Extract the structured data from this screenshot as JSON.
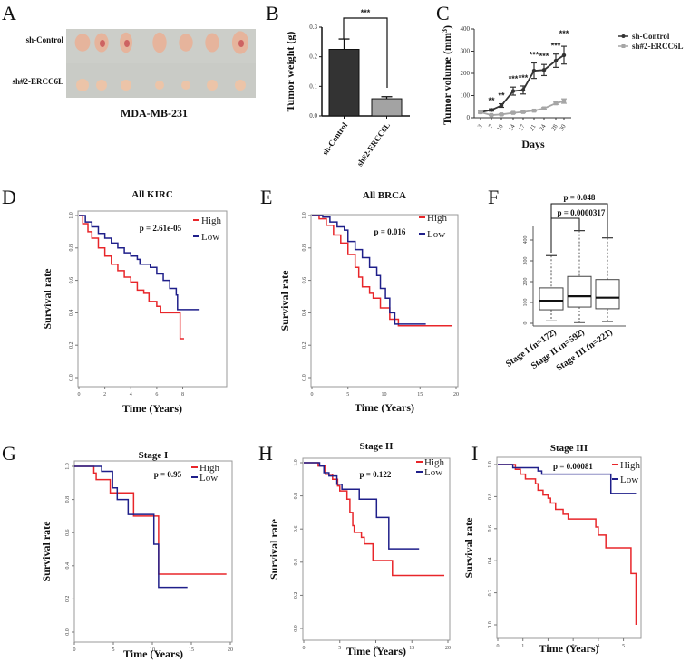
{
  "figure": {
    "panel_labels": [
      "A",
      "B",
      "C",
      "D",
      "E",
      "F",
      "G",
      "H",
      "I"
    ]
  },
  "chart_data": [
    {
      "panel": "A",
      "type": "image",
      "description": "Photograph of excised xenograft tumors",
      "row_labels": [
        "sh-Control",
        "sh#2-ERCC6L"
      ],
      "tumors_per_row": 7,
      "caption": "MDA-MB-231",
      "colors": {
        "background": "#c9cbc6",
        "tumor": "#e6b49c",
        "tumor_red": "#c2404a"
      }
    },
    {
      "panel": "B",
      "type": "bar",
      "title": "",
      "categories": [
        "sh-Control",
        "sh#2-ERCC6L"
      ],
      "values": [
        0.225,
        0.058
      ],
      "errors": [
        0.035,
        0.007
      ],
      "ylabel": "Tumor weight (g)",
      "xlabel": "",
      "ylim": [
        0,
        0.3
      ],
      "yticks": [
        "0.0",
        "0.1",
        "0.2",
        "0.3"
      ],
      "significance": "***",
      "colors": [
        "#333333",
        "#a3a3a3"
      ],
      "grid": false
    },
    {
      "panel": "C",
      "type": "line",
      "x": [
        3,
        7,
        10,
        14,
        17,
        21,
        24,
        28,
        30
      ],
      "xticks": [
        "3",
        "7",
        "10",
        "14",
        "17",
        "21",
        "24",
        "28",
        "30"
      ],
      "series": [
        {
          "name": "sh-Control",
          "values": [
            25,
            35,
            55,
            120,
            125,
            212,
            215,
            257,
            282
          ],
          "errors": [
            4,
            5,
            8,
            18,
            18,
            35,
            25,
            30,
            40
          ],
          "color": "#333333"
        },
        {
          "name": "sh#2-ERCC6L",
          "values": [
            25,
            12,
            15,
            22,
            26,
            32,
            42,
            65,
            75
          ],
          "errors": [
            3,
            2,
            3,
            3,
            3,
            3,
            4,
            5,
            10
          ],
          "color": "#a6a6a6"
        }
      ],
      "significance": [
        "",
        "**",
        "**",
        "***",
        "***",
        "***",
        "***",
        "***",
        "***"
      ],
      "xlabel": "Days",
      "ylabel": "Tumor volume (mm³)",
      "ylabel_base": "Tumor volume (mm",
      "ylabel_sup": "3",
      "ylabel_end": ")",
      "ylim": [
        0,
        400
      ],
      "yticks": [
        "0",
        "100",
        "200",
        "300",
        "400"
      ],
      "legend": "right",
      "grid": false
    },
    {
      "panel": "D",
      "type": "line",
      "subtype": "kaplan-meier",
      "title": "All KIRC",
      "pvalue": "p = 2.61e-05",
      "xlabel": "Time (Years)",
      "ylabel": "Survival rate",
      "xlim": [
        0,
        9.5
      ],
      "ylim": [
        0,
        1
      ],
      "xticks": [
        "0",
        "2",
        "4",
        "6",
        "8"
      ],
      "yticks": [
        "0.0",
        "0.2",
        "0.4",
        "0.6",
        "0.8",
        "1.0"
      ],
      "legend": "top-right",
      "series": [
        {
          "name": "High",
          "color": "#e8262a",
          "points": [
            [
              0,
              1.0
            ],
            [
              0.3,
              0.95
            ],
            [
              0.7,
              0.9
            ],
            [
              1.0,
              0.86
            ],
            [
              1.5,
              0.8
            ],
            [
              2.0,
              0.75
            ],
            [
              2.5,
              0.7
            ],
            [
              3.0,
              0.66
            ],
            [
              3.5,
              0.62
            ],
            [
              4.0,
              0.59
            ],
            [
              4.5,
              0.54
            ],
            [
              5.0,
              0.52
            ],
            [
              5.4,
              0.47
            ],
            [
              6.0,
              0.44
            ],
            [
              6.3,
              0.4
            ],
            [
              7.6,
              0.4
            ],
            [
              7.8,
              0.24
            ],
            [
              8.1,
              0.24
            ]
          ]
        },
        {
          "name": "Low",
          "color": "#1f1f8a",
          "points": [
            [
              0,
              1.0
            ],
            [
              0.5,
              0.96
            ],
            [
              1.0,
              0.93
            ],
            [
              1.5,
              0.89
            ],
            [
              2.0,
              0.86
            ],
            [
              2.5,
              0.83
            ],
            [
              3.0,
              0.8
            ],
            [
              3.5,
              0.77
            ],
            [
              4.0,
              0.75
            ],
            [
              4.5,
              0.73
            ],
            [
              4.7,
              0.7
            ],
            [
              5.5,
              0.68
            ],
            [
              6.0,
              0.64
            ],
            [
              6.5,
              0.6
            ],
            [
              7.0,
              0.55
            ],
            [
              7.5,
              0.51
            ],
            [
              7.6,
              0.42
            ],
            [
              9.3,
              0.42
            ]
          ]
        }
      ]
    },
    {
      "panel": "E",
      "type": "line",
      "subtype": "kaplan-meier",
      "title": "All BRCA",
      "pvalue": "p = 0.016",
      "xlabel": "Time (Years)",
      "ylabel": "Survival rate",
      "xlim": [
        0,
        20
      ],
      "ylim": [
        0,
        1
      ],
      "xticks": [
        "0",
        "5",
        "10",
        "15",
        "20"
      ],
      "yticks": [
        "0.0",
        "0.2",
        "0.4",
        "0.6",
        "0.8",
        "1.0"
      ],
      "legend": "top-right",
      "series": [
        {
          "name": "High",
          "color": "#e8262a",
          "points": [
            [
              0,
              1.0
            ],
            [
              1,
              0.98
            ],
            [
              2,
              0.94
            ],
            [
              3,
              0.88
            ],
            [
              4,
              0.83
            ],
            [
              5,
              0.76
            ],
            [
              6,
              0.68
            ],
            [
              6.5,
              0.62
            ],
            [
              7,
              0.56
            ],
            [
              8,
              0.52
            ],
            [
              8.5,
              0.49
            ],
            [
              9.5,
              0.43
            ],
            [
              10.8,
              0.36
            ],
            [
              12,
              0.32
            ],
            [
              19.5,
              0.32
            ]
          ]
        },
        {
          "name": "Low",
          "color": "#1f1f8a",
          "points": [
            [
              0,
              1.0
            ],
            [
              1.5,
              0.99
            ],
            [
              2.5,
              0.96
            ],
            [
              3.5,
              0.93
            ],
            [
              4.5,
              0.91
            ],
            [
              5,
              0.84
            ],
            [
              6,
              0.79
            ],
            [
              7,
              0.74
            ],
            [
              8,
              0.68
            ],
            [
              9,
              0.63
            ],
            [
              9.5,
              0.55
            ],
            [
              10.2,
              0.49
            ],
            [
              10.8,
              0.4
            ],
            [
              11.5,
              0.33
            ],
            [
              15.8,
              0.33
            ]
          ]
        }
      ]
    },
    {
      "panel": "F",
      "type": "box",
      "categories": [
        "Stage I (n=172)",
        "Stage II (n=592)",
        "Stage III (n=221)"
      ],
      "boxes": [
        {
          "min": 12,
          "q1": 65,
          "median": 108,
          "q3": 170,
          "max": 325
        },
        {
          "min": 3,
          "q1": 78,
          "median": 130,
          "q3": 225,
          "max": 445
        },
        {
          "min": 8,
          "q1": 70,
          "median": 123,
          "q3": 210,
          "max": 410
        }
      ],
      "ylim": [
        0,
        450
      ],
      "yticks": [
        "0",
        "100",
        "200",
        "300",
        "400"
      ],
      "comparisons": [
        {
          "groups": [
            0,
            2
          ],
          "label": "p = 0.048"
        },
        {
          "groups": [
            0,
            1
          ],
          "label": "p = 0.0000317"
        }
      ]
    },
    {
      "panel": "G",
      "type": "line",
      "subtype": "kaplan-meier",
      "title": "Stage I",
      "pvalue": "p = 0.95",
      "xlabel": "Time (Years)",
      "ylabel": "Survival rate",
      "xlim": [
        0,
        20
      ],
      "ylim": [
        0,
        1
      ],
      "xticks": [
        "0",
        "5",
        "10",
        "15",
        "20"
      ],
      "yticks": [
        "0.0",
        "0.2",
        "0.4",
        "0.6",
        "0.8",
        "1.0"
      ],
      "legend": "top-right",
      "series": [
        {
          "name": "High",
          "color": "#e8262a",
          "points": [
            [
              0,
              1.0
            ],
            [
              2.5,
              1.0
            ],
            [
              2.5,
              0.96
            ],
            [
              2.8,
              0.92
            ],
            [
              4.6,
              0.92
            ],
            [
              4.6,
              0.84
            ],
            [
              7.5,
              0.84
            ],
            [
              7.6,
              0.7
            ],
            [
              10.8,
              0.7
            ],
            [
              10.8,
              0.35
            ],
            [
              19.5,
              0.35
            ]
          ]
        },
        {
          "name": "Low",
          "color": "#1f1f8a",
          "points": [
            [
              0,
              1.0
            ],
            [
              3.5,
              1.0
            ],
            [
              3.5,
              0.97
            ],
            [
              4.9,
              0.97
            ],
            [
              4.9,
              0.87
            ],
            [
              5.4,
              0.87
            ],
            [
              5.5,
              0.8
            ],
            [
              6.8,
              0.8
            ],
            [
              6.9,
              0.71
            ],
            [
              10.2,
              0.71
            ],
            [
              10.2,
              0.53
            ],
            [
              10.8,
              0.53
            ],
            [
              10.8,
              0.27
            ],
            [
              14.5,
              0.27
            ]
          ]
        }
      ]
    },
    {
      "panel": "H",
      "type": "line",
      "subtype": "kaplan-meier",
      "title": "Stage II",
      "pvalue": "p = 0.122",
      "xlabel": "Time (Years)",
      "ylabel": "Survival rate",
      "xlim": [
        0,
        20
      ],
      "ylim": [
        0,
        1
      ],
      "xticks": [
        "0",
        "5",
        "10",
        "15",
        "20"
      ],
      "yticks": [
        "0.0",
        "0.2",
        "0.4",
        "0.6",
        "0.8",
        "1.0"
      ],
      "legend": "top-right",
      "series": [
        {
          "name": "High",
          "color": "#e8262a",
          "points": [
            [
              0,
              1.0
            ],
            [
              2,
              0.98
            ],
            [
              3,
              0.93
            ],
            [
              4,
              0.9
            ],
            [
              4.7,
              0.86
            ],
            [
              5,
              0.83
            ],
            [
              6,
              0.78
            ],
            [
              6.4,
              0.7
            ],
            [
              6.8,
              0.62
            ],
            [
              7,
              0.58
            ],
            [
              7.8,
              0.58
            ],
            [
              8,
              0.55
            ],
            [
              8.4,
              0.51
            ],
            [
              9.5,
              0.51
            ],
            [
              9.6,
              0.41
            ],
            [
              12.2,
              0.41
            ],
            [
              12.3,
              0.32
            ],
            [
              19.5,
              0.32
            ]
          ]
        },
        {
          "name": "Low",
          "color": "#1f1f8a",
          "points": [
            [
              0,
              1.0
            ],
            [
              2.2,
              0.98
            ],
            [
              2.8,
              0.94
            ],
            [
              3.5,
              0.92
            ],
            [
              4.5,
              0.92
            ],
            [
              4.6,
              0.87
            ],
            [
              5.3,
              0.84
            ],
            [
              7.5,
              0.84
            ],
            [
              7.7,
              0.78
            ],
            [
              10,
              0.78
            ],
            [
              10.1,
              0.67
            ],
            [
              11.7,
              0.67
            ],
            [
              11.8,
              0.48
            ],
            [
              16,
              0.48
            ]
          ]
        }
      ]
    },
    {
      "panel": "I",
      "type": "line",
      "subtype": "kaplan-meier",
      "title": "Stage III",
      "pvalue": "p = 0.00081",
      "xlabel": "Time (Years)",
      "ylabel": "Survival rate",
      "xlim": [
        0,
        5.7
      ],
      "ylim": [
        0,
        1
      ],
      "xticks": [
        "0",
        "1",
        "2",
        "3",
        "4",
        "5"
      ],
      "yticks": [
        "0.0",
        "0.2",
        "0.4",
        "0.6",
        "0.8",
        "1.0"
      ],
      "legend": "top-right",
      "series": [
        {
          "name": "High",
          "color": "#e8262a",
          "points": [
            [
              0,
              1.0
            ],
            [
              0.5,
              1.0
            ],
            [
              0.7,
              0.97
            ],
            [
              0.9,
              0.94
            ],
            [
              1.1,
              0.91
            ],
            [
              1.5,
              0.88
            ],
            [
              1.6,
              0.84
            ],
            [
              1.8,
              0.81
            ],
            [
              2.0,
              0.79
            ],
            [
              2.1,
              0.76
            ],
            [
              2.3,
              0.72
            ],
            [
              2.6,
              0.69
            ],
            [
              2.8,
              0.66
            ],
            [
              3.8,
              0.66
            ],
            [
              3.9,
              0.61
            ],
            [
              4.0,
              0.56
            ],
            [
              4.3,
              0.56
            ],
            [
              4.3,
              0.48
            ],
            [
              5.3,
              0.48
            ],
            [
              5.3,
              0.32
            ],
            [
              5.5,
              0.32
            ],
            [
              5.5,
              0.0
            ]
          ]
        },
        {
          "name": "Low",
          "color": "#1f1f8a",
          "points": [
            [
              0,
              1.0
            ],
            [
              0.5,
              1.0
            ],
            [
              0.6,
              0.98
            ],
            [
              1.5,
              0.98
            ],
            [
              1.6,
              0.96
            ],
            [
              1.75,
              0.94
            ],
            [
              4.5,
              0.94
            ],
            [
              4.5,
              0.82
            ],
            [
              5.5,
              0.82
            ]
          ]
        }
      ]
    }
  ]
}
